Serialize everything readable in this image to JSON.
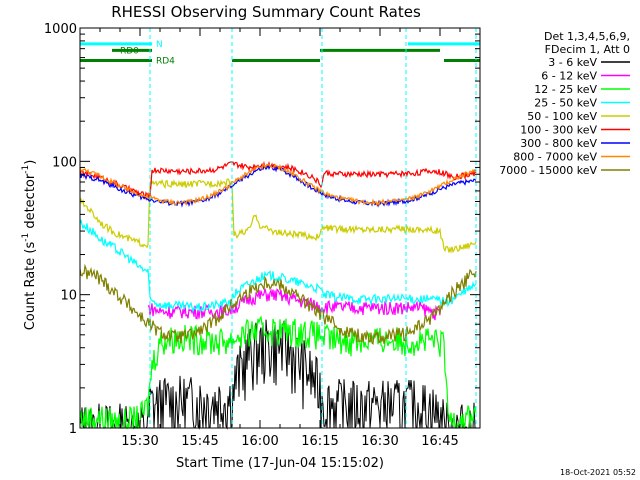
{
  "chart_data": {
    "type": "line",
    "title": "RHESSI Observing Summary Count Rates",
    "xlabel": "Start Time (17-Jun-04 15:15:02)",
    "ylabel_main": "Count Rate (s",
    "ylabel_sup1": "-1",
    "ylabel_mid": " detector",
    "ylabel_sup2": "-1",
    "ylabel_end": ")",
    "yscale": "log",
    "ylim": [
      1,
      1000
    ],
    "xlim_minutes": [
      0,
      100
    ],
    "x_ticks": [
      {
        "t": 15,
        "label": "15:30"
      },
      {
        "t": 30,
        "label": "15:45"
      },
      {
        "t": 45,
        "label": "16:00"
      },
      {
        "t": 60,
        "label": "16:15"
      },
      {
        "t": 75,
        "label": "16:30"
      },
      {
        "t": 90,
        "label": "16:45"
      }
    ],
    "y_ticks": [
      {
        "v": 1,
        "label": "1"
      },
      {
        "v": 10,
        "label": "10"
      },
      {
        "v": 100,
        "label": "100"
      },
      {
        "v": 1000,
        "label": "1000"
      }
    ],
    "legend_header": [
      "Det 1,3,4,5,6,9,",
      "FDecim 1, Att 0"
    ],
    "legend_placement": "right",
    "footer_date": "18-Oct-2021 05:52",
    "flags": [
      {
        "label": "N",
        "color": "#00ffff",
        "level": 760,
        "segments": [
          [
            0,
            18
          ],
          [
            82,
            100
          ]
        ],
        "label_t": 19
      },
      {
        "label": "RD0",
        "color": "#008000",
        "level": 680,
        "segments": [
          [
            8,
            18
          ],
          [
            38,
            37.9
          ],
          [
            38,
            38
          ],
          [
            60,
            90
          ]
        ],
        "label_t": 10
      },
      {
        "label": "RD4",
        "color": "#008000",
        "level": 570,
        "segments": [
          [
            0,
            18
          ],
          [
            38,
            60
          ],
          [
            91,
            100
          ]
        ],
        "label_t": 19
      }
    ],
    "night_boundaries": [
      17.5,
      38,
      60.5,
      81.5,
      99
    ],
    "series": [
      {
        "name": "3 - 6 keV",
        "color": "#000000",
        "x": [
          0,
          17,
          17.5,
          22,
          27,
          33,
          38,
          39,
          42,
          45,
          48,
          52,
          56,
          60,
          61,
          65,
          70,
          75,
          80,
          84,
          88,
          92,
          95,
          99
        ],
        "y": [
          1,
          1,
          1.5,
          1.6,
          1.6,
          1.6,
          1.7,
          2.4,
          3.6,
          4.2,
          4.3,
          4.0,
          3.0,
          2.0,
          1.6,
          1.5,
          1.5,
          1.5,
          1.5,
          1.5,
          1.4,
          1,
          1,
          1
        ]
      },
      {
        "name": "6 - 12 keV",
        "color": "#ff00ff",
        "x": [
          17,
          20,
          25,
          30,
          33,
          36,
          38,
          40,
          43,
          46,
          49,
          52,
          55,
          58,
          61,
          65,
          70,
          75,
          80,
          85,
          88,
          90
        ],
        "y": [
          8,
          7.5,
          7.5,
          7.5,
          7.5,
          7.5,
          7.8,
          8.5,
          9.5,
          10,
          10,
          9.5,
          9,
          8.5,
          8.2,
          8,
          8,
          8,
          8,
          8,
          7.5,
          7
        ]
      },
      {
        "name": "12 - 25 keV",
        "color": "#00ff00",
        "x": [
          0,
          5,
          10,
          15,
          17,
          18,
          20,
          24,
          30,
          35,
          38,
          40,
          44,
          48,
          52,
          56,
          60,
          62,
          66,
          72,
          78,
          84,
          88,
          91,
          92,
          96,
          99
        ],
        "y": [
          1.2,
          1.2,
          1.1,
          1.2,
          1.5,
          3,
          4.5,
          4.8,
          4.7,
          4.5,
          4.6,
          5,
          5.4,
          5.5,
          5.4,
          5.3,
          5,
          4.7,
          4.6,
          4.6,
          4.6,
          4.6,
          4.5,
          4.3,
          1.2,
          1.2,
          1.3
        ]
      },
      {
        "name": "25 - 50 keV",
        "color": "#00ffff",
        "x": [
          0,
          3,
          6,
          9,
          12,
          15,
          17,
          17.5,
          20,
          25,
          30,
          35,
          38,
          39,
          42,
          45,
          48,
          52,
          56,
          60,
          61,
          65,
          70,
          75,
          80,
          85,
          90,
          92,
          95,
          99
        ],
        "y": [
          35,
          30,
          25,
          22,
          19,
          16,
          15,
          9,
          8.5,
          8.2,
          8,
          8.5,
          9,
          10.5,
          12,
          13.5,
          14,
          13,
          12,
          11,
          10,
          9.5,
          9.3,
          9.3,
          9.3,
          9.3,
          9.2,
          8.8,
          10,
          12
        ]
      },
      {
        "name": "50 - 100 keV",
        "color": "#cccc00",
        "x": [
          0,
          2,
          4,
          6,
          8,
          11,
          14,
          16,
          17,
          17.5,
          20,
          25,
          30,
          35,
          38,
          38.5,
          42,
          44,
          45,
          47,
          50,
          55,
          60,
          60.5,
          65,
          70,
          75,
          80,
          85,
          90,
          91,
          93,
          96,
          99
        ],
        "y": [
          50,
          45,
          38,
          33,
          30,
          27,
          25,
          24,
          24,
          68,
          68,
          67,
          68,
          69,
          70,
          28,
          30,
          40,
          33,
          31,
          29,
          28,
          27,
          32,
          31,
          31,
          31,
          31,
          31,
          30,
          22,
          22,
          23,
          25
        ]
      },
      {
        "name": "100 - 300 keV",
        "color": "#ff0000",
        "x": [
          0,
          4,
          8,
          12,
          16,
          17.5,
          18,
          22,
          26,
          30,
          34,
          38,
          42,
          46,
          50,
          54,
          58,
          60.5,
          61,
          65,
          70,
          75,
          80,
          84,
          88,
          91,
          93,
          96,
          99
        ],
        "y": [
          82,
          78,
          70,
          62,
          56,
          54,
          86,
          85,
          84,
          85,
          87,
          96,
          90,
          95,
          92,
          87,
          77,
          66,
          82,
          80,
          80,
          80,
          81,
          82,
          85,
          82,
          76,
          78,
          82
        ]
      },
      {
        "name": "300 - 800 keV",
        "color": "#0000ff",
        "x": [
          0,
          4,
          8,
          12,
          16,
          20,
          24,
          28,
          32,
          36,
          40,
          44,
          47,
          50,
          54,
          58,
          62,
          66,
          70,
          74,
          78,
          82,
          86,
          90,
          94,
          99
        ],
        "y": [
          78,
          74,
          66,
          58,
          53,
          50,
          48,
          49,
          52,
          60,
          72,
          85,
          90,
          88,
          76,
          63,
          55,
          51,
          49,
          48,
          49,
          51,
          55,
          62,
          68,
          72
        ]
      },
      {
        "name": "800 - 7000 keV",
        "color": "#ff8800",
        "x": [
          0,
          4,
          8,
          12,
          16,
          20,
          24,
          28,
          32,
          36,
          40,
          44,
          47,
          50,
          54,
          58,
          62,
          66,
          70,
          74,
          78,
          82,
          86,
          90,
          94,
          99
        ],
        "y": [
          88,
          80,
          70,
          61,
          55,
          51,
          49,
          50,
          54,
          62,
          75,
          88,
          93,
          90,
          78,
          65,
          56,
          52,
          50,
          49,
          50,
          52,
          57,
          65,
          75,
          85
        ]
      },
      {
        "name": "7000 - 15000 keV",
        "color": "#808000",
        "x": [
          0,
          4,
          8,
          12,
          16,
          20,
          24,
          28,
          32,
          36,
          40,
          44,
          47,
          50,
          54,
          58,
          62,
          66,
          70,
          74,
          78,
          82,
          86,
          90,
          94,
          99
        ],
        "y": [
          15,
          14,
          11,
          8.5,
          6.5,
          5.2,
          4.8,
          5,
          5.8,
          7.5,
          9.5,
          11.5,
          12.5,
          12,
          10,
          8,
          6.5,
          5.4,
          4.9,
          4.8,
          4.9,
          5.2,
          6,
          8,
          11,
          15
        ]
      }
    ]
  }
}
